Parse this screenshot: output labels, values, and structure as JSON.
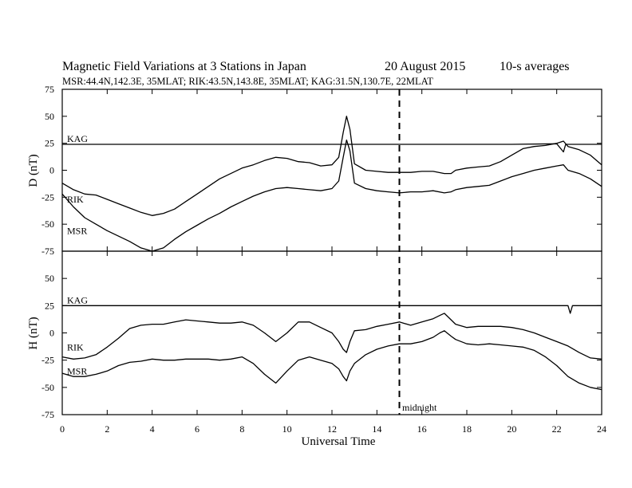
{
  "chart_data": {
    "type": "line",
    "title": "Magnetic Field Variations at 3 Stations in Japan",
    "date": "20  August  2015",
    "averaging": "10-s averages",
    "stations_line": "MSR:44.4N,142.3E, 35MLAT;  RIK:43.5N,143.8E, 35MLAT;  KAG:31.5N,130.7E, 22MLAT",
    "xlabel": "Universal Time",
    "xlim": [
      0,
      24
    ],
    "x_ticks": [
      "0",
      "2",
      "4",
      "6",
      "8",
      "10",
      "12",
      "14",
      "16",
      "18",
      "20",
      "22",
      "24"
    ],
    "midnight": {
      "x": 15,
      "label": "midnight"
    },
    "panels": [
      {
        "ylabel": "D (nT)",
        "ylim": [
          -75,
          75
        ],
        "y_ticks": [
          "75",
          "50",
          "25",
          "0",
          "-25",
          "-50",
          "-75"
        ],
        "series": [
          {
            "name": "KAG",
            "x": [
              0,
              2,
              4,
              6,
              8,
              10,
              12,
              14,
              16,
              18,
              20,
              22,
              22.3,
              22.4,
              24
            ],
            "values": [
              24,
              24,
              24,
              24,
              24,
              24,
              24,
              24,
              24,
              24,
              24,
              24.5,
              17,
              24,
              24
            ]
          },
          {
            "name": "RIK",
            "x": [
              0,
              0.5,
              1,
              1.5,
              2,
              2.5,
              3,
              3.5,
              4,
              4.5,
              5,
              5.5,
              6,
              6.5,
              7,
              7.5,
              8,
              8.5,
              9,
              9.5,
              10,
              10.5,
              11,
              11.5,
              12,
              12.3,
              12.5,
              12.65,
              12.8,
              13,
              13.5,
              14,
              14.5,
              15,
              15.5,
              16,
              16.5,
              17,
              17.3,
              17.5,
              18,
              18.5,
              19,
              19.5,
              20,
              20.5,
              21,
              21.5,
              22,
              22.3,
              22.5,
              23,
              23.5,
              24
            ],
            "values": [
              -12,
              -18,
              -22,
              -23,
              -27,
              -31,
              -35,
              -39,
              -42,
              -40,
              -36,
              -29,
              -22,
              -15,
              -8,
              -3,
              2,
              5,
              9,
              12,
              11,
              8,
              7,
              4,
              5,
              12,
              35,
              50,
              38,
              6,
              0,
              -1,
              -2,
              -2,
              -2,
              -1,
              -1,
              -3,
              -3,
              0,
              2,
              3,
              4,
              8,
              14,
              20,
              22,
              23,
              25,
              27,
              22,
              19,
              14,
              5
            ]
          },
          {
            "name": "MSR",
            "x": [
              0,
              0.5,
              1,
              1.5,
              2,
              2.5,
              3,
              3.5,
              4,
              4.5,
              5,
              5.5,
              6,
              6.5,
              7,
              7.5,
              8,
              8.5,
              9,
              9.5,
              10,
              10.5,
              11,
              11.5,
              12,
              12.3,
              12.5,
              12.65,
              12.8,
              13,
              13.5,
              14,
              14.5,
              15,
              15.5,
              16,
              16.5,
              17,
              17.3,
              17.5,
              18,
              18.5,
              19,
              19.5,
              20,
              20.5,
              21,
              21.5,
              22,
              22.3,
              22.5,
              23,
              23.5,
              24
            ],
            "values": [
              -22,
              -34,
              -44,
              -50,
              -56,
              -61,
              -66,
              -72,
              -75,
              -72,
              -64,
              -57,
              -51,
              -45,
              -40,
              -34,
              -29,
              -24,
              -20,
              -17,
              -16,
              -17,
              -18,
              -19,
              -17,
              -10,
              12,
              28,
              18,
              -12,
              -17,
              -19,
              -20,
              -21,
              -20,
              -20,
              -19,
              -21,
              -20,
              -18,
              -16,
              -15,
              -14,
              -10,
              -6,
              -3,
              0,
              2,
              4,
              5,
              0,
              -3,
              -8,
              -15
            ]
          }
        ]
      },
      {
        "ylabel": "H (nT)",
        "ylim": [
          -75,
          75
        ],
        "y_ticks": [
          "75",
          "50",
          "25",
          "0",
          "-25",
          "-50",
          "-75"
        ],
        "series": [
          {
            "name": "KAG",
            "x": [
              0,
              2,
              4,
              6,
              8,
              10,
              12,
              14,
              16,
              18,
              20,
              22,
              22.5,
              22.6,
              22.7,
              24
            ],
            "values": [
              25,
              25,
              25,
              25,
              25,
              25,
              25,
              25,
              25,
              25,
              25,
              25,
              25,
              18,
              25,
              25
            ]
          },
          {
            "name": "RIK",
            "x": [
              0,
              0.5,
              1,
              1.5,
              2,
              2.5,
              3,
              3.5,
              4,
              4.5,
              5,
              5.5,
              6,
              6.5,
              7,
              7.5,
              8,
              8.5,
              9,
              9.5,
              10,
              10.5,
              11,
              11.5,
              12,
              12.3,
              12.5,
              12.65,
              12.8,
              13,
              13.5,
              14,
              14.5,
              15,
              15.5,
              16,
              16.5,
              16.8,
              17,
              17.3,
              17.5,
              18,
              18.5,
              19,
              19.5,
              20,
              20.5,
              21,
              21.5,
              22,
              22.5,
              23,
              23.5,
              24
            ],
            "values": [
              -22,
              -24,
              -23,
              -20,
              -13,
              -5,
              4,
              7,
              8,
              8,
              10,
              12,
              11,
              10,
              9,
              9,
              10,
              7,
              0,
              -8,
              0,
              10,
              10,
              5,
              0,
              -8,
              -15,
              -18,
              -8,
              2,
              3,
              6,
              8,
              10,
              7,
              10,
              13,
              16,
              18,
              12,
              8,
              5,
              6,
              6,
              6,
              5,
              3,
              0,
              -4,
              -8,
              -12,
              -18,
              -23,
              -24
            ]
          },
          {
            "name": "MSR",
            "x": [
              0,
              0.5,
              1,
              1.5,
              2,
              2.5,
              3,
              3.5,
              4,
              4.5,
              5,
              5.5,
              6,
              6.5,
              7,
              7.5,
              8,
              8.5,
              9,
              9.5,
              10,
              10.5,
              11,
              11.5,
              12,
              12.3,
              12.5,
              12.65,
              12.8,
              13,
              13.5,
              14,
              14.5,
              15,
              15.5,
              16,
              16.5,
              16.8,
              17,
              17.3,
              17.5,
              18,
              18.5,
              19,
              19.5,
              20,
              20.5,
              21,
              21.5,
              22,
              22.5,
              23,
              23.5,
              24
            ],
            "values": [
              -37,
              -40,
              -40,
              -38,
              -35,
              -30,
              -27,
              -26,
              -24,
              -25,
              -25,
              -24,
              -24,
              -24,
              -25,
              -24,
              -22,
              -28,
              -38,
              -46,
              -35,
              -25,
              -22,
              -25,
              -28,
              -33,
              -40,
              -44,
              -35,
              -28,
              -20,
              -15,
              -12,
              -10,
              -10,
              -8,
              -4,
              0,
              2,
              -3,
              -6,
              -10,
              -11,
              -10,
              -11,
              -12,
              -13,
              -16,
              -22,
              -30,
              -40,
              -46,
              -50,
              -52
            ]
          }
        ]
      }
    ]
  }
}
